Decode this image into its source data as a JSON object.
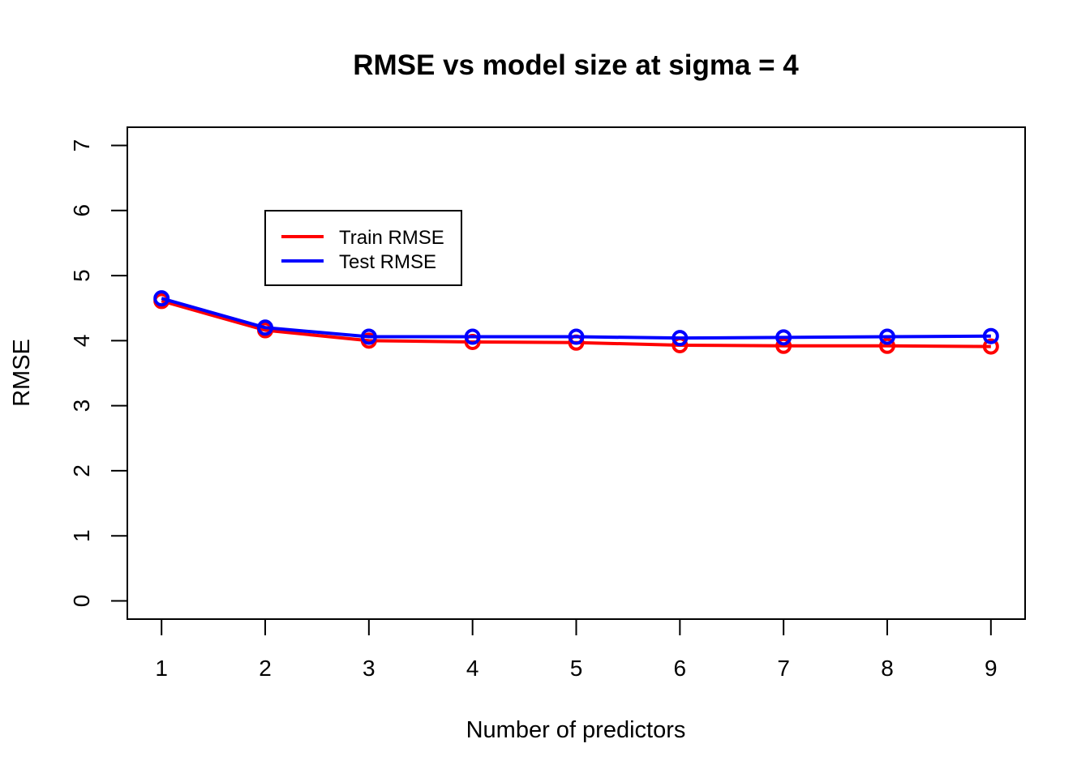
{
  "chart_data": {
    "type": "line",
    "title": "RMSE vs model size at sigma = 4",
    "xlabel": "Number of predictors",
    "ylabel": "RMSE",
    "x": [
      1,
      2,
      3,
      4,
      5,
      6,
      7,
      8,
      9
    ],
    "xlim": [
      0.67,
      9.33
    ],
    "ylim": [
      -0.28,
      7.28
    ],
    "xticks": [
      1,
      2,
      3,
      4,
      5,
      6,
      7,
      8,
      9
    ],
    "yticks": [
      0,
      1,
      2,
      3,
      4,
      5,
      6,
      7
    ],
    "grid": false,
    "legend_position": "top-left",
    "markers": "open circles",
    "series": [
      {
        "name": "Train RMSE",
        "color": "#ff0000",
        "values": [
          4.61,
          4.16,
          4.0,
          3.98,
          3.97,
          3.93,
          3.92,
          3.92,
          3.91
        ]
      },
      {
        "name": "Test RMSE",
        "color": "#0000ff",
        "values": [
          4.65,
          4.2,
          4.06,
          4.06,
          4.06,
          4.04,
          4.05,
          4.06,
          4.07
        ]
      }
    ]
  }
}
